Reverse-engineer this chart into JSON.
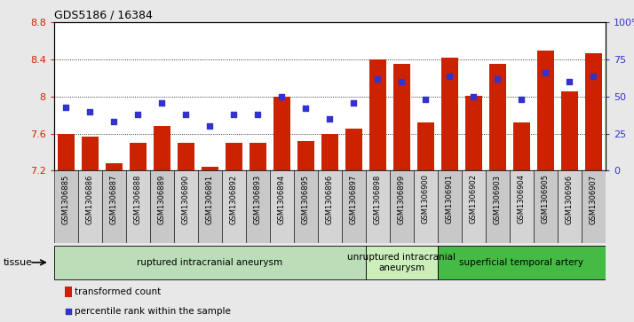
{
  "title": "GDS5186 / 16384",
  "samples": [
    "GSM1306885",
    "GSM1306886",
    "GSM1306887",
    "GSM1306888",
    "GSM1306889",
    "GSM1306890",
    "GSM1306891",
    "GSM1306892",
    "GSM1306893",
    "GSM1306894",
    "GSM1306895",
    "GSM1306896",
    "GSM1306897",
    "GSM1306898",
    "GSM1306899",
    "GSM1306900",
    "GSM1306901",
    "GSM1306902",
    "GSM1306903",
    "GSM1306904",
    "GSM1306905",
    "GSM1306906",
    "GSM1306907"
  ],
  "bar_values": [
    7.6,
    7.57,
    7.28,
    7.5,
    7.68,
    7.5,
    7.24,
    7.5,
    7.5,
    8.0,
    7.52,
    7.6,
    7.65,
    8.4,
    8.35,
    7.72,
    8.42,
    8.01,
    8.35,
    7.72,
    8.5,
    8.06,
    8.47
  ],
  "percentile_values": [
    43,
    40,
    33,
    38,
    46,
    38,
    30,
    38,
    38,
    50,
    42,
    35,
    46,
    62,
    60,
    48,
    64,
    50,
    62,
    48,
    66,
    60,
    64
  ],
  "ylim_left": [
    7.2,
    8.8
  ],
  "ylim_right": [
    0,
    100
  ],
  "yticks_left": [
    7.2,
    7.6,
    8.0,
    8.4,
    8.8
  ],
  "ytick_labels_left": [
    "7.2",
    "7.6",
    "8",
    "8.4",
    "8.8"
  ],
  "yticks_right": [
    0,
    25,
    50,
    75,
    100
  ],
  "ytick_labels_right": [
    "0",
    "25",
    "50",
    "75",
    "100%"
  ],
  "bar_color": "#CC2200",
  "dot_color": "#3333CC",
  "group_labels": [
    "ruptured intracranial aneurysm",
    "unruptured intracranial\naneurysm",
    "superficial temporal artery"
  ],
  "group_starts": [
    0,
    13,
    16
  ],
  "group_ends": [
    12,
    15,
    22
  ],
  "group_colors": [
    "#BBDDB8",
    "#CCEEBB",
    "#44BB44"
  ],
  "legend_bar_label": "transformed count",
  "legend_dot_label": "percentile rank within the sample",
  "tissue_label": "tissue",
  "fig_bg_color": "#E8E8E8",
  "plot_bg_color": "#FFFFFF",
  "tick_bg_odd": "#D8D8D8",
  "tick_bg_even": "#C8C8C8"
}
